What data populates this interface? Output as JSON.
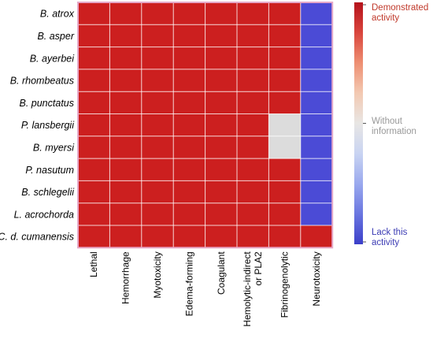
{
  "chart_data": {
    "type": "heatmap",
    "rows": [
      "B. atrox",
      "B. asper",
      "B. ayerbei",
      "B. rhombeatus",
      "B. punctatus",
      "P. lansbergii",
      "B. myersi",
      "P. nasutum",
      "B. schlegelii",
      "L. acrochorda",
      "C. d. cumanensis"
    ],
    "columns": [
      [
        "Lethal"
      ],
      [
        "Hemorrhage"
      ],
      [
        "Myotoxicity"
      ],
      [
        "Edema-forming"
      ],
      [
        "Coagulant"
      ],
      [
        "Hemolytic-indirect",
        "or PLA2"
      ],
      [
        "Fibrinogenolytic"
      ],
      [
        "Neurotoxicity"
      ]
    ],
    "values": [
      [
        1,
        1,
        1,
        1,
        1,
        1,
        1,
        -1
      ],
      [
        1,
        1,
        1,
        1,
        1,
        1,
        1,
        -1
      ],
      [
        1,
        1,
        1,
        1,
        1,
        1,
        1,
        -1
      ],
      [
        1,
        1,
        1,
        1,
        1,
        1,
        1,
        -1
      ],
      [
        1,
        1,
        1,
        1,
        1,
        1,
        1,
        -1
      ],
      [
        1,
        1,
        1,
        1,
        1,
        1,
        0,
        -1
      ],
      [
        1,
        1,
        1,
        1,
        1,
        1,
        0,
        -1
      ],
      [
        1,
        1,
        1,
        1,
        1,
        1,
        1,
        -1
      ],
      [
        1,
        1,
        1,
        1,
        1,
        1,
        1,
        -1
      ],
      [
        1,
        1,
        1,
        1,
        1,
        1,
        1,
        -1
      ],
      [
        1,
        1,
        1,
        1,
        1,
        1,
        1,
        1
      ]
    ],
    "value_range": [
      -1,
      1
    ],
    "colors": {
      "high": "#cc1f1f",
      "mid": "#dcdcdc",
      "low": "#4b4bd6",
      "grid": "#ffffff",
      "border": "#e6a8c8"
    },
    "colorbar": {
      "high_label": [
        "Demonstrated",
        "activity"
      ],
      "high_color": "#c0392b",
      "mid_label": [
        "Without",
        "information"
      ],
      "mid_color": "#999999",
      "low_label": [
        "Lack this",
        "activity"
      ],
      "low_color": "#3c3cb4",
      "gradient": [
        "#b5121b",
        "#d9453d",
        "#ee8f72",
        "#f3c9b2",
        "#e8e6e4",
        "#c9d4f2",
        "#9aa9ee",
        "#6a76e0",
        "#3b3fc9"
      ]
    }
  }
}
